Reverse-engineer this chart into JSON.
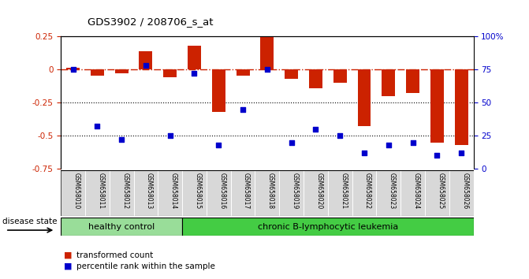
{
  "title": "GDS3902 / 208706_s_at",
  "samples": [
    "GSM658010",
    "GSM658011",
    "GSM658012",
    "GSM658013",
    "GSM658014",
    "GSM658015",
    "GSM658016",
    "GSM658017",
    "GSM658018",
    "GSM658019",
    "GSM658020",
    "GSM658021",
    "GSM658022",
    "GSM658023",
    "GSM658024",
    "GSM658025",
    "GSM658026"
  ],
  "bar_values": [
    0.01,
    -0.05,
    -0.03,
    0.14,
    -0.06,
    0.18,
    -0.32,
    -0.05,
    0.27,
    -0.07,
    -0.14,
    -0.1,
    -0.43,
    -0.2,
    -0.18,
    -0.55,
    -0.57
  ],
  "dot_values": [
    75,
    32,
    22,
    78,
    25,
    72,
    18,
    45,
    75,
    20,
    30,
    25,
    12,
    18,
    20,
    10,
    12
  ],
  "bar_color": "#cc2200",
  "dot_color": "#0000cc",
  "ylim_left": [
    -0.75,
    0.25
  ],
  "ylim_right": [
    0,
    100
  ],
  "hline_value": 0.0,
  "dotted_lines": [
    -0.25,
    -0.5
  ],
  "right_ticks": [
    0,
    25,
    50,
    75,
    100
  ],
  "right_tick_labels": [
    "0",
    "25",
    "50",
    "75",
    "100%"
  ],
  "healthy_count": 5,
  "disease_state_label": "disease state",
  "healthy_label": "healthy control",
  "leukemia_label": "chronic B-lymphocytic leukemia",
  "legend_bar_label": "transformed count",
  "legend_dot_label": "percentile rank within the sample",
  "healthy_color": "#99dd99",
  "leukemia_color": "#44cc44",
  "bg_color": "#ffffff",
  "bar_width": 0.55,
  "xlim": [
    -0.5,
    16.5
  ],
  "left_yticks": [
    -0.75,
    -0.5,
    -0.25,
    0,
    0.25
  ],
  "left_yticklabels": [
    "-0.75",
    "-0.5",
    "-0.25",
    "0",
    "0.25"
  ]
}
